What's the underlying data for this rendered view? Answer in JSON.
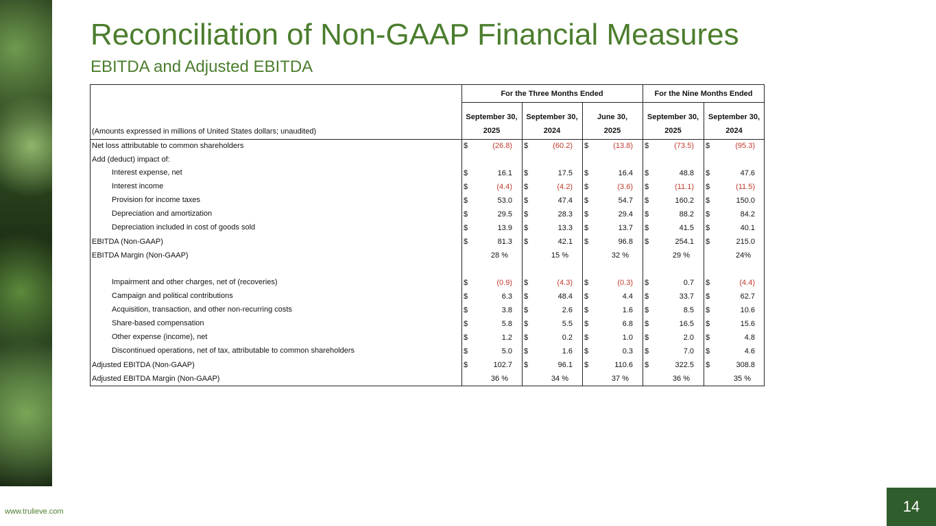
{
  "header": {
    "title": "Reconciliation of Non-GAAP Financial Measures",
    "subtitle": "EBITDA and Adjusted EBITDA"
  },
  "table": {
    "groups": [
      {
        "label": "For the Three Months Ended",
        "span": 3
      },
      {
        "label": "For the Nine Months Ended",
        "span": 2
      }
    ],
    "label_header": "(Amounts expressed in millions of United States dollars; unaudited)",
    "columns": [
      {
        "top": "September 30,",
        "bottom": "2025"
      },
      {
        "top": "September 30,",
        "bottom": "2024"
      },
      {
        "top": "June 30,",
        "bottom": "2025"
      },
      {
        "top": "September 30,",
        "bottom": "2025"
      },
      {
        "top": "September 30,",
        "bottom": "2024"
      }
    ],
    "rows": [
      {
        "label": "Net loss attributable to common shareholders",
        "currency": "$",
        "values": [
          "(26.8)",
          "(60.2)",
          "(13.8)",
          "(73.5)",
          "(95.3)"
        ]
      },
      {
        "label": "Add (deduct) impact of:"
      },
      {
        "label": "Interest expense, net",
        "indent": true,
        "currency": "$",
        "values": [
          "16.1",
          "17.5",
          "16.4",
          "48.8",
          "47.6"
        ]
      },
      {
        "label": "Interest income",
        "indent": true,
        "currency": "$",
        "values": [
          "(4.4)",
          "(4.2)",
          "(3.6)",
          "(11.1)",
          "(11.5)"
        ]
      },
      {
        "label": "Provision for income taxes",
        "indent": true,
        "currency": "$",
        "values": [
          "53.0",
          "47.4",
          "54.7",
          "160.2",
          "150.0"
        ]
      },
      {
        "label": "Depreciation and amortization",
        "indent": true,
        "currency": "$",
        "values": [
          "29.5",
          "28.3",
          "29.4",
          "88.2",
          "84.2"
        ]
      },
      {
        "label": "Depreciation included in cost of goods sold",
        "indent": true,
        "currency": "$",
        "values": [
          "13.9",
          "13.3",
          "13.7",
          "41.5",
          "40.1"
        ]
      },
      {
        "label": "EBITDA (Non-GAAP)",
        "currency": "$",
        "values": [
          "81.3",
          "42.1",
          "96.8",
          "254.1",
          "215.0"
        ]
      },
      {
        "label": "EBITDA Margin (Non-GAAP)",
        "values": [
          "28 %",
          "15 %",
          "32 %",
          "29 %",
          "24%"
        ]
      },
      {
        "label": "Impairment and other charges, net of (recoveries)",
        "indent": true,
        "space_before": true,
        "currency": "$",
        "values": [
          "(0.9)",
          "(4.3)",
          "(0.3)",
          "0.7",
          "(4.4)"
        ]
      },
      {
        "label": "Campaign and political contributions",
        "indent": true,
        "currency": "$",
        "values": [
          "6.3",
          "48.4",
          "4.4",
          "33.7",
          "62.7"
        ]
      },
      {
        "label": "Acquisition, transaction, and other non-recurring costs",
        "indent": true,
        "currency": "$",
        "values": [
          "3.8",
          "2.6",
          "1.6",
          "8.5",
          "10.6"
        ]
      },
      {
        "label": "Share-based compensation",
        "indent": true,
        "currency": "$",
        "values": [
          "5.8",
          "5.5",
          "6.8",
          "16.5",
          "15.6"
        ]
      },
      {
        "label": "Other expense (income), net",
        "indent": true,
        "currency": "$",
        "values": [
          "1.2",
          "0.2",
          "1.0",
          "2.0",
          "4.8"
        ]
      },
      {
        "label": "Discontinued operations, net of tax, attributable to common shareholders",
        "indent": true,
        "currency": "$",
        "values": [
          "5.0",
          "1.6",
          "0.3",
          "7.0",
          "4.6"
        ]
      },
      {
        "label": "Adjusted EBITDA (Non-GAAP)",
        "currency": "$",
        "values": [
          "102.7",
          "96.1",
          "110.6",
          "322.5",
          "308.8"
        ]
      },
      {
        "label": "Adjusted EBITDA Margin (Non-GAAP)",
        "values": [
          "36 %",
          "34 %",
          "37 %",
          "36 %",
          "35 %"
        ]
      }
    ]
  },
  "footer": {
    "url": "www.trulieve.com",
    "page": "14"
  }
}
